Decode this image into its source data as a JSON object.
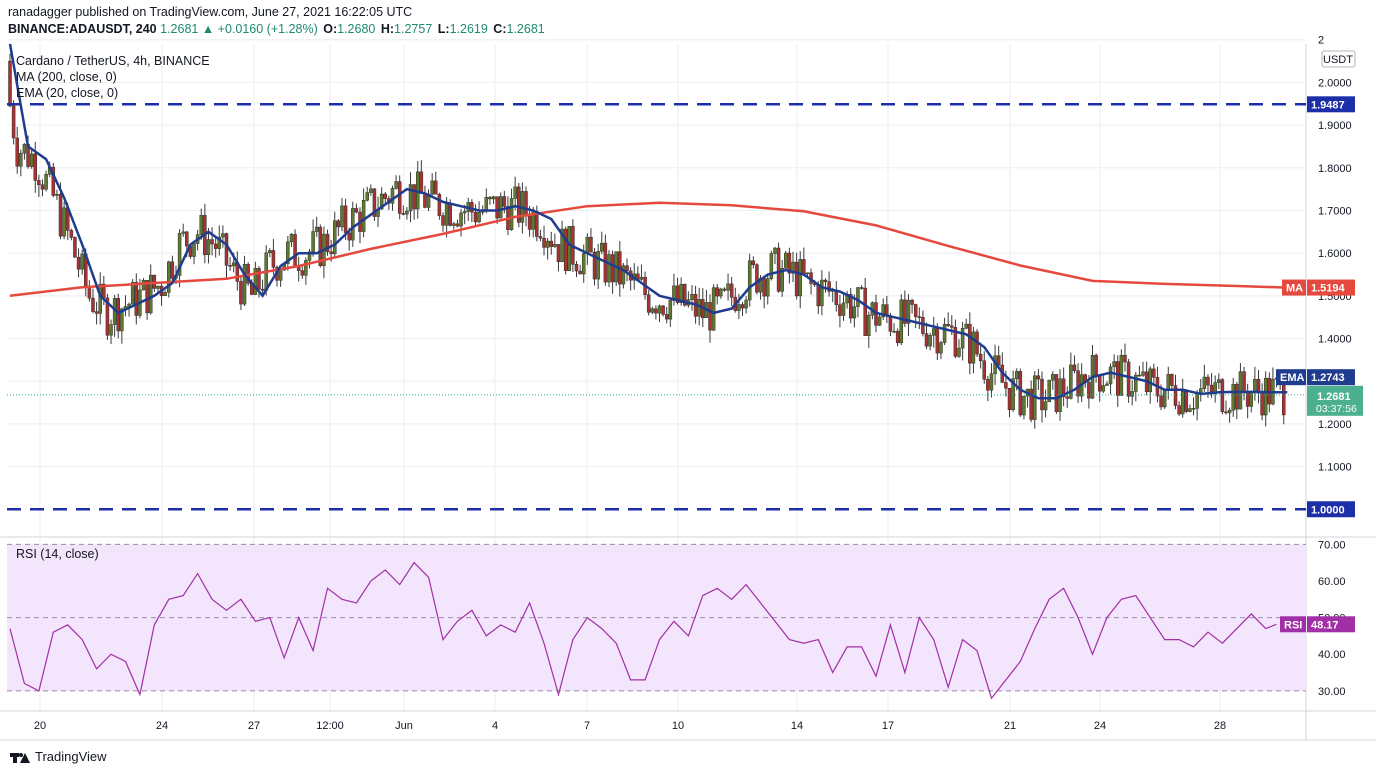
{
  "header": {
    "publisher_line": "ranadagger published on TradingView.com, June 27, 2021 16:22:05 UTC",
    "symbol": "BINANCE:ADAUSDT, 240",
    "change": "1.2681 ▲ +0.0160 (+1.28%)",
    "o_label": "O:",
    "o_value": "1.2680",
    "h_label": "H:",
    "h_value": "1.2757",
    "l_label": "L:",
    "l_value": "1.2619",
    "c_label": "C:",
    "c_value": "1.2681"
  },
  "legend": {
    "title": "Cardano / TetherUS, 4h, BINANCE",
    "ma": "MA (200, close, 0)",
    "ema": "EMA (20, close, 0)",
    "rsi": "RSI (14, close)"
  },
  "currency_badge": "USDT",
  "footer_brand": "TradingView",
  "colors": {
    "up": "#26a69a",
    "down": "#ef5350",
    "candle_dark": "#5f7a2c",
    "candle_red": "#a83232",
    "ema": "#1f3c8f",
    "ma": "#e5493d",
    "rsi": "#a12fa6",
    "rsi_band": "#f3e5fb",
    "support_line": "#1c2fa8"
  },
  "chart_data": [
    {
      "type": "candlestick",
      "title": "Cardano / TetherUS, 4h, BINANCE",
      "x_tick_labels": [
        "20",
        "24",
        "27",
        "12:00",
        "Jun",
        "4",
        "7",
        "10",
        "14",
        "17",
        "21",
        "24",
        "28"
      ],
      "y_tick_labels": [
        "1.1000",
        "1.2000",
        "1.3000",
        "1.4000",
        "1.5000",
        "1.6000",
        "1.7000",
        "1.8000",
        "1.9000",
        "2.0000",
        "2"
      ],
      "ylim": [
        0.935,
        2.09
      ],
      "horizontal_lines": [
        {
          "label": "1.9487",
          "value": 1.9487,
          "style": "dashed"
        },
        {
          "label": "1.0000",
          "value": 1.0,
          "style": "dashed"
        }
      ],
      "price_tags": [
        {
          "name": "MA",
          "value_label": "1.5194",
          "value": 1.5194
        },
        {
          "name": "EMA",
          "value_label": "1.2743",
          "value": 1.2743
        },
        {
          "name": "last",
          "value_label": "1.2681",
          "countdown": "03:37:56",
          "value": 1.2681
        }
      ],
      "series": [
        {
          "name": "MA (200, close, 0)",
          "x": [
            0,
            20,
            40,
            60,
            80,
            100,
            120,
            140,
            160,
            180,
            200,
            220,
            240,
            260,
            280,
            300,
            320,
            340,
            354
          ],
          "values": [
            1.5,
            1.52,
            1.53,
            1.54,
            1.57,
            1.61,
            1.645,
            1.685,
            1.71,
            1.718,
            1.712,
            1.698,
            1.665,
            1.617,
            1.571,
            1.535,
            1.528,
            1.523,
            1.5194
          ]
        },
        {
          "name": "EMA (20, close, 0)",
          "x": [
            0,
            5,
            10,
            15,
            20,
            25,
            30,
            35,
            40,
            45,
            50,
            55,
            60,
            65,
            70,
            75,
            80,
            85,
            90,
            95,
            100,
            105,
            110,
            115,
            120,
            125,
            130,
            135,
            140,
            145,
            150,
            155,
            160,
            165,
            170,
            175,
            180,
            185,
            190,
            195,
            200,
            205,
            210,
            215,
            220,
            225,
            230,
            235,
            240,
            245,
            250,
            255,
            260,
            265,
            270,
            275,
            280,
            285,
            290,
            295,
            300,
            305,
            310,
            315,
            320,
            325,
            330,
            335,
            340,
            345,
            350,
            354
          ],
          "values": [
            2.09,
            1.85,
            1.82,
            1.73,
            1.62,
            1.5,
            1.46,
            1.48,
            1.5,
            1.53,
            1.62,
            1.65,
            1.62,
            1.55,
            1.5,
            1.57,
            1.6,
            1.6,
            1.62,
            1.66,
            1.69,
            1.72,
            1.75,
            1.74,
            1.72,
            1.71,
            1.7,
            1.7,
            1.71,
            1.7,
            1.68,
            1.62,
            1.6,
            1.58,
            1.56,
            1.53,
            1.5,
            1.49,
            1.48,
            1.46,
            1.47,
            1.52,
            1.55,
            1.56,
            1.55,
            1.52,
            1.51,
            1.49,
            1.46,
            1.45,
            1.44,
            1.43,
            1.42,
            1.41,
            1.38,
            1.32,
            1.28,
            1.26,
            1.26,
            1.28,
            1.31,
            1.32,
            1.31,
            1.3,
            1.28,
            1.28,
            1.27,
            1.2743,
            1.275,
            1.275,
            1.274,
            1.2743
          ]
        }
      ]
    },
    {
      "type": "line",
      "title": "RSI (14, close)",
      "y_tick_labels": [
        "30.00",
        "40.00",
        "50.00",
        "60.00",
        "70.00"
      ],
      "ylim": [
        24.5,
        72
      ],
      "bands": [
        30,
        50,
        70
      ],
      "price_tags": [
        {
          "name": "RSI",
          "value_label": "48.17",
          "value": 48.17
        }
      ],
      "series": [
        {
          "name": "RSI (14, close)",
          "x": [
            0,
            4,
            8,
            12,
            16,
            20,
            24,
            28,
            32,
            36,
            40,
            44,
            48,
            52,
            56,
            60,
            64,
            68,
            72,
            76,
            80,
            84,
            88,
            92,
            96,
            100,
            104,
            108,
            112,
            116,
            120,
            124,
            128,
            132,
            136,
            140,
            144,
            148,
            152,
            156,
            160,
            164,
            168,
            172,
            176,
            180,
            184,
            188,
            192,
            196,
            200,
            204,
            208,
            212,
            216,
            220,
            224,
            228,
            232,
            236,
            240,
            244,
            248,
            252,
            256,
            260,
            264,
            268,
            272,
            276,
            280,
            284,
            288,
            292,
            296,
            300,
            304,
            308,
            312,
            316,
            320,
            324,
            328,
            332,
            336,
            340,
            344,
            348,
            351
          ],
          "values": [
            47,
            32,
            30,
            46,
            48,
            44,
            36,
            40,
            38,
            29,
            48,
            55,
            56,
            62,
            55,
            52,
            55,
            49,
            50,
            39,
            50,
            41,
            58,
            55,
            54,
            60,
            63,
            59,
            65,
            61,
            44,
            49,
            52,
            45,
            48,
            46,
            54,
            43,
            29,
            44,
            50,
            47,
            43,
            33,
            33,
            44,
            49,
            45,
            56,
            58,
            55,
            59,
            54,
            49,
            44,
            43,
            44,
            35,
            42,
            42,
            34,
            48,
            35,
            50,
            44,
            31,
            44,
            41,
            28,
            33,
            38,
            47,
            55,
            58,
            50,
            40,
            50,
            55,
            56,
            50,
            44,
            44,
            42,
            46,
            43,
            47,
            51,
            47,
            48.17
          ]
        }
      ]
    }
  ]
}
